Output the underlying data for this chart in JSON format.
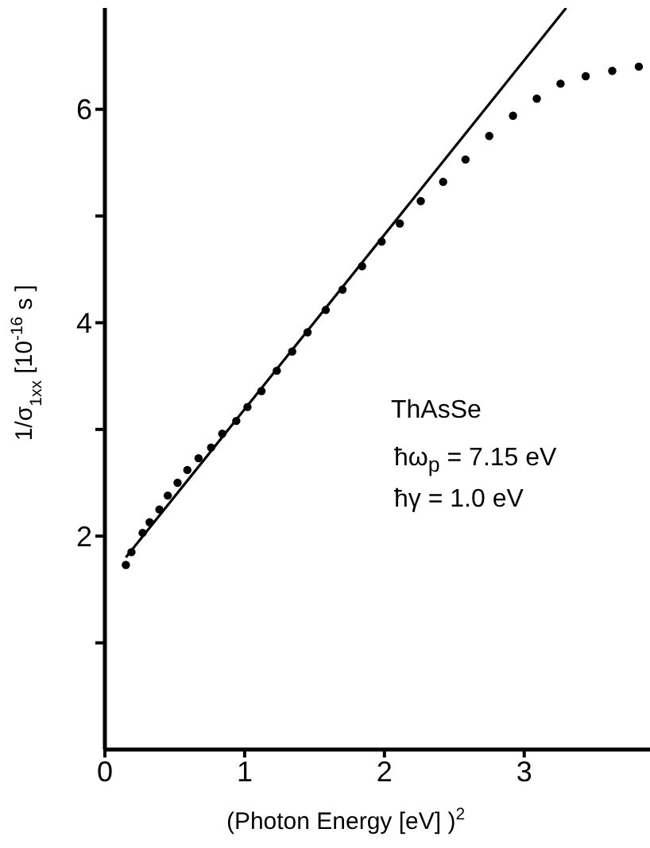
{
  "chart_data": {
    "type": "scatter",
    "xlabel": "(Photon Energy [eV] )$^{2}$",
    "ylabel": "1/σ$_{1xx}$  [10$^{-16}$ s ]",
    "annotations": [
      "ThAsSe",
      "ħω$_{p}$ = 7.15 eV",
      "ħγ = 1.0 eV"
    ],
    "xlim": [
      0,
      3.9
    ],
    "xticks": [
      0,
      1,
      2,
      3
    ],
    "ylim": [
      0,
      6.95
    ],
    "yticks": [
      {
        "value": 1,
        "label": null
      },
      2,
      {
        "value": 3,
        "label": null
      },
      4,
      {
        "value": 5,
        "label": null
      },
      6
    ],
    "series": [
      {
        "marker": "circle",
        "color": "#000000",
        "x": [
          0.15,
          0.19,
          0.27,
          0.32,
          0.39,
          0.45,
          0.52,
          0.59,
          0.67,
          0.76,
          0.84,
          0.94,
          1.02,
          1.12,
          1.23,
          1.34,
          1.45,
          1.58,
          1.7,
          1.84,
          1.98,
          2.11,
          2.26,
          2.42,
          2.58,
          2.75,
          2.92,
          3.09,
          3.26,
          3.44,
          3.63,
          3.82
        ],
        "values": [
          1.73,
          1.85,
          2.03,
          2.13,
          2.25,
          2.38,
          2.5,
          2.62,
          2.73,
          2.83,
          2.96,
          3.08,
          3.21,
          3.36,
          3.55,
          3.73,
          3.91,
          4.12,
          4.31,
          4.53,
          4.76,
          4.93,
          5.14,
          5.32,
          5.53,
          5.75,
          5.94,
          6.1,
          6.24,
          6.31,
          6.36,
          6.4
        ]
      },
      {
        "type": "line",
        "marker": "none",
        "line_style": "solid",
        "color": "#000000",
        "x": [
          0.15,
          3.3
        ],
        "values": [
          1.8,
          6.95
        ]
      }
    ]
  }
}
